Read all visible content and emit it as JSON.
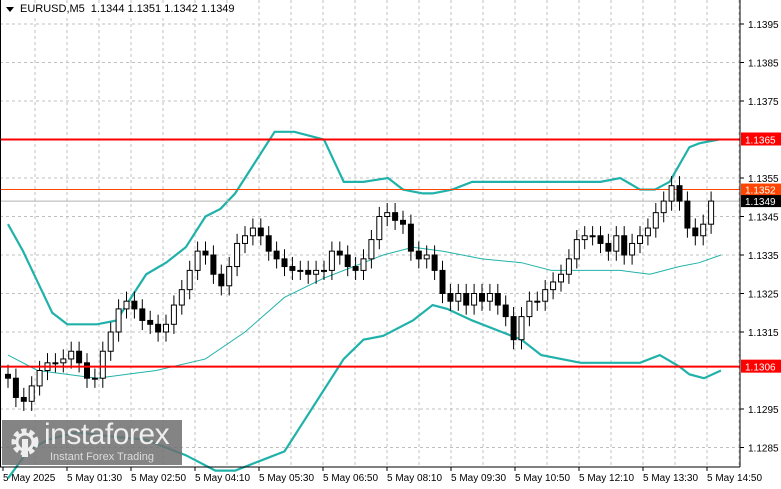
{
  "header": {
    "symbol": "EURUSD,M5",
    "ohlc": "1.1344 1.1351 1.1342 1.1349"
  },
  "logo": {
    "brand": "instaforex",
    "tagline": "Instant Forex Trading"
  },
  "colors": {
    "band": "#20b2aa",
    "level": "#ff0000",
    "ask_line": "#ff4500",
    "bid_label": "#000000",
    "grid": "#c0c0c0"
  },
  "chart_data": {
    "type": "candlestick",
    "indicator": "Bollinger Bands",
    "y_ticks": [
      "1.1395",
      "1.1385",
      "1.1375",
      "1.1355",
      "1.1345",
      "1.1335",
      "1.1325",
      "1.1315",
      "1.1295",
      "1.1285"
    ],
    "ylim": [
      1.128,
      1.14
    ],
    "x_ticks": [
      "5 May 2025",
      "5 May 01:30",
      "5 May 02:50",
      "5 May 04:10",
      "5 May 05:30",
      "5 May 06:50",
      "5 May 08:10",
      "5 May 09:30",
      "5 May 10:50",
      "5 May 12:10",
      "5 May 13:30",
      "5 May 14:50"
    ],
    "levels": [
      {
        "price": "1.1365"
      },
      {
        "price": "1.1306"
      }
    ],
    "ask": "1.1352",
    "bid": "1.1349",
    "first_open": 1.1304,
    "closes": [
      1.1303,
      1.1298,
      1.1297,
      1.1301,
      1.1305,
      1.1307,
      1.1307,
      1.1308,
      1.131,
      1.1307,
      1.1303,
      1.1303,
      1.131,
      1.1315,
      1.1321,
      1.1323,
      1.1321,
      1.1318,
      1.1317,
      1.1315,
      1.1317,
      1.1322,
      1.1326,
      1.1331,
      1.1336,
      1.1335,
      1.133,
      1.1327,
      1.1332,
      1.1338,
      1.134,
      1.1342,
      1.134,
      1.1336,
      1.1334,
      1.1332,
      1.1331,
      1.1331,
      1.133,
      1.1331,
      1.1331,
      1.1336,
      1.1335,
      1.1332,
      1.1331,
      1.1334,
      1.1339,
      1.1345,
      1.1346,
      1.1344,
      1.1343,
      1.1336,
      1.1334,
      1.1335,
      1.1331,
      1.1325,
      1.1323,
      1.1325,
      1.1322,
      1.1325,
      1.1323,
      1.1325,
      1.1322,
      1.1319,
      1.1313,
      1.1319,
      1.1323,
      1.1323,
      1.1326,
      1.1328,
      1.133,
      1.1334,
      1.1339,
      1.134,
      1.134,
      1.1338,
      1.1336,
      1.134,
      1.1335,
      1.1338,
      1.134,
      1.1342,
      1.1346,
      1.1349,
      1.1353,
      1.1349,
      1.1342,
      1.134,
      1.1343,
      1.1349
    ],
    "upper_band": [
      [
        0,
        1.1343
      ],
      [
        1.9,
        1.1336
      ],
      [
        3.75,
        1.1328
      ],
      [
        5.6,
        1.132
      ],
      [
        7.5,
        1.1317
      ],
      [
        9.4,
        1.1317
      ],
      [
        11.25,
        1.1317
      ],
      [
        13.75,
        1.1318
      ],
      [
        15.6,
        1.1324
      ],
      [
        17.5,
        1.133
      ],
      [
        20,
        1.1333
      ],
      [
        22.5,
        1.1337
      ],
      [
        25,
        1.1345
      ],
      [
        26.9,
        1.1347
      ],
      [
        28.75,
        1.1351
      ],
      [
        31.25,
        1.1359
      ],
      [
        33.75,
        1.1367
      ],
      [
        36.25,
        1.1367
      ],
      [
        40,
        1.1365
      ],
      [
        42.5,
        1.1354
      ],
      [
        45,
        1.1354
      ],
      [
        48.1,
        1.1355
      ],
      [
        50,
        1.1352
      ],
      [
        52.5,
        1.1351
      ],
      [
        53.75,
        1.1351
      ],
      [
        56.25,
        1.1352
      ],
      [
        58.75,
        1.1354
      ],
      [
        62.5,
        1.1354
      ],
      [
        67.5,
        1.1354
      ],
      [
        75,
        1.1354
      ],
      [
        77.5,
        1.1355
      ],
      [
        80,
        1.1352
      ],
      [
        81.9,
        1.1352
      ],
      [
        83.75,
        1.1354
      ],
      [
        86.25,
        1.1363
      ],
      [
        87.5,
        1.1364
      ],
      [
        90,
        1.1365
      ]
    ],
    "middle_band": [
      [
        0,
        1.1309
      ],
      [
        3.75,
        1.1305
      ],
      [
        7.5,
        1.1304
      ],
      [
        11.25,
        1.1303
      ],
      [
        15,
        1.1304
      ],
      [
        18.75,
        1.1305
      ],
      [
        25,
        1.1308
      ],
      [
        30,
        1.1315
      ],
      [
        35,
        1.1324
      ],
      [
        40,
        1.1329
      ],
      [
        43.75,
        1.1332
      ],
      [
        47.5,
        1.1335
      ],
      [
        51.25,
        1.1337
      ],
      [
        55,
        1.1336
      ],
      [
        60,
        1.1334
      ],
      [
        65,
        1.1333
      ],
      [
        68.75,
        1.1331
      ],
      [
        72.5,
        1.1331
      ],
      [
        77.5,
        1.1331
      ],
      [
        81.25,
        1.133
      ],
      [
        85,
        1.1332
      ],
      [
        87.5,
        1.1333
      ],
      [
        90.25,
        1.1335
      ]
    ],
    "lower_band": [
      [
        0,
        1.1277
      ],
      [
        2.5,
        1.1284
      ],
      [
        5,
        1.1287
      ],
      [
        8.75,
        1.1289
      ],
      [
        12.5,
        1.1288
      ],
      [
        17.5,
        1.1287
      ],
      [
        22.5,
        1.1283
      ],
      [
        26.25,
        1.1279
      ],
      [
        28.75,
        1.1279
      ],
      [
        31.25,
        1.1281
      ],
      [
        32.5,
        1.1282
      ],
      [
        35,
        1.1284
      ],
      [
        37.5,
        1.1292
      ],
      [
        40,
        1.13
      ],
      [
        42.5,
        1.1308
      ],
      [
        45,
        1.1313
      ],
      [
        47.5,
        1.1314
      ],
      [
        51.25,
        1.1318
      ],
      [
        53.75,
        1.1322
      ],
      [
        55.6,
        1.1321
      ],
      [
        58.75,
        1.1318
      ],
      [
        62.5,
        1.1315
      ],
      [
        65,
        1.1313
      ],
      [
        67.5,
        1.1309
      ],
      [
        72.5,
        1.1307
      ],
      [
        77.5,
        1.1307
      ],
      [
        80,
        1.1307
      ],
      [
        82.5,
        1.1309
      ],
      [
        85,
        1.1306
      ],
      [
        86.25,
        1.1304
      ],
      [
        88.1,
        1.1303
      ],
      [
        90.25,
        1.1305
      ]
    ]
  }
}
